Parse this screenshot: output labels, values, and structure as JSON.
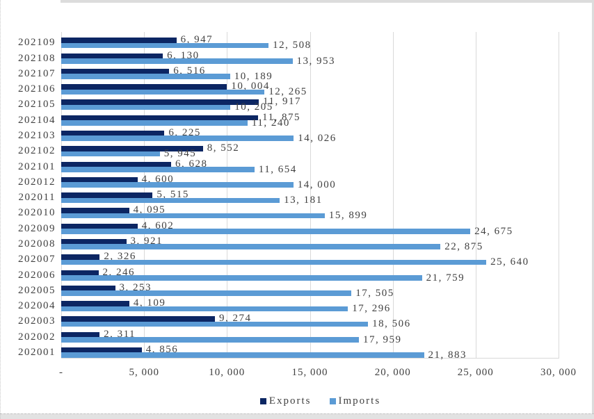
{
  "chart_data": {
    "type": "bar",
    "orientation": "horizontal",
    "title": "",
    "categories": [
      "202109",
      "202108",
      "202107",
      "202106",
      "202105",
      "202104",
      "202103",
      "202102",
      "202101",
      "202012",
      "202011",
      "202010",
      "202009",
      "202008",
      "202007",
      "202006",
      "202005",
      "202004",
      "202003",
      "202002",
      "202001"
    ],
    "series": [
      {
        "name": "Exports",
        "color": "#0c2663",
        "values": [
          6947,
          6130,
          6516,
          10004,
          11917,
          11875,
          6225,
          8552,
          6628,
          4600,
          5515,
          4095,
          4602,
          3921,
          2326,
          2246,
          3253,
          4109,
          9274,
          2311,
          4856
        ]
      },
      {
        "name": "Imports",
        "color": "#5b9bd5",
        "values": [
          12508,
          13953,
          10189,
          12265,
          10205,
          11240,
          14026,
          5945,
          11654,
          14000,
          13181,
          15899,
          24675,
          22875,
          25640,
          21759,
          17505,
          17296,
          18506,
          17959,
          21883
        ]
      }
    ],
    "x_axis": {
      "ticks": [
        "-",
        "5, 000",
        "10, 000",
        "15, 000",
        "20, 000",
        "25, 000",
        "30, 000"
      ],
      "min": 0,
      "max": 30000,
      "tick_step": 5000
    },
    "value_label_format": "thousands comma followed by space, e.g. 6, 947",
    "grid": {
      "vertical_gridlines": true,
      "gridline_color": "#d9d9d9"
    },
    "legend": {
      "position": "bottom",
      "items": [
        "Exports",
        "Imports"
      ]
    }
  },
  "colors": {
    "exports": "#0c2663",
    "imports": "#5b9bd5",
    "text": "#404040",
    "gridline": "#d9d9d9",
    "frame_edge": "#dcdcdc"
  }
}
